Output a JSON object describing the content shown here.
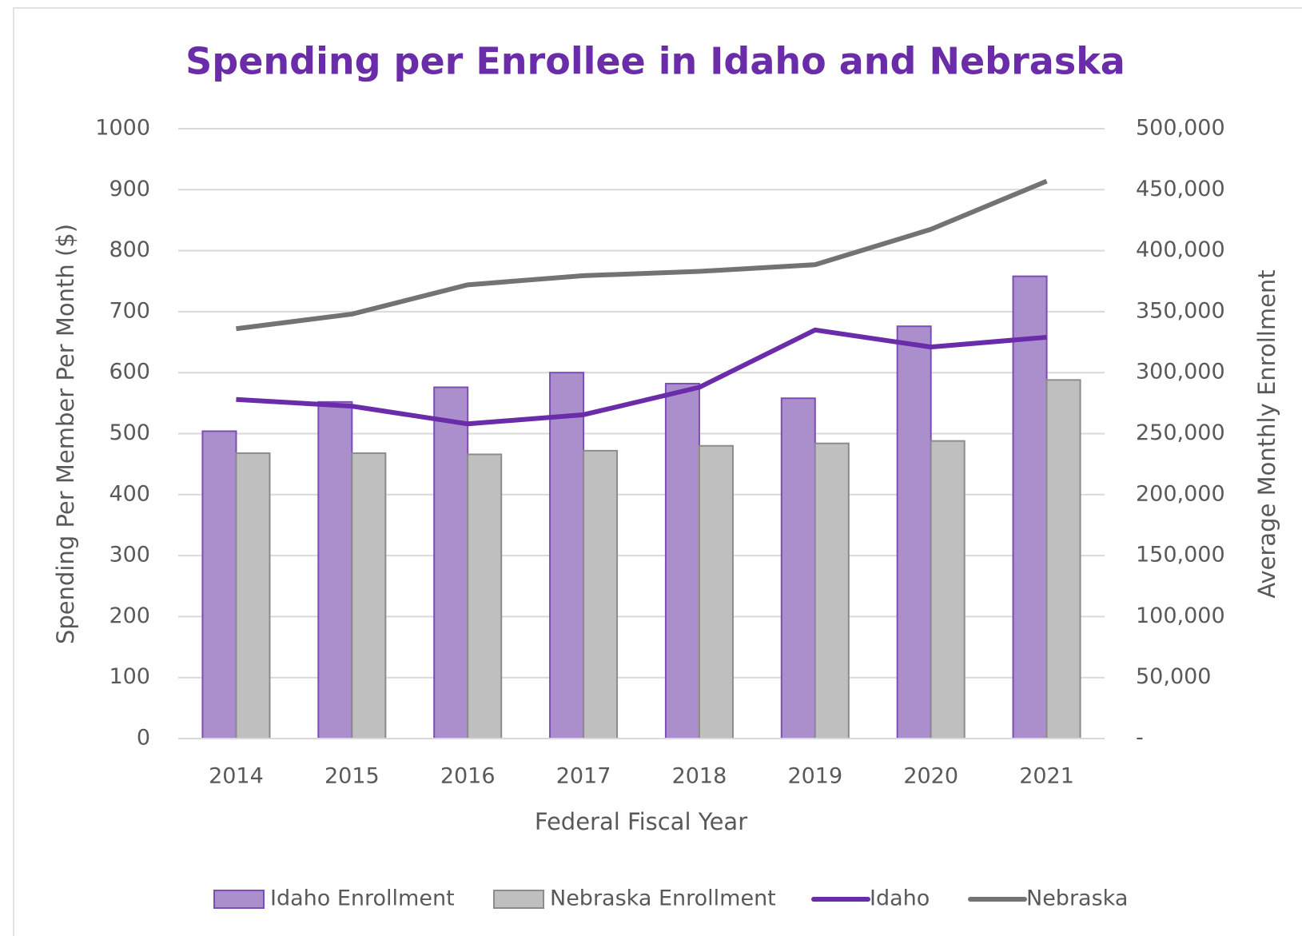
{
  "chart_data": {
    "type": "bar",
    "title": "Spending per Enrollee in Idaho and Nebraska",
    "x_label": "Federal Fiscal Year",
    "y_label": "Spending Per Member Per Month ($)",
    "y2_label": "Average Monthly Enrollment",
    "categories": [
      "2014",
      "2015",
      "2016",
      "2017",
      "2018",
      "2019",
      "2020",
      "2021"
    ],
    "series": [
      {
        "name": "Idaho Enrollment",
        "type": "bar",
        "axis": "y2",
        "color": "#ab8fcd",
        "edge_color": "#7d4db5",
        "values": [
          252000,
          276000,
          288000,
          300000,
          291000,
          279000,
          338000,
          379000
        ]
      },
      {
        "name": "Nebraska Enrollment",
        "type": "bar",
        "axis": "y2",
        "color": "#bfbfbf",
        "edge_color": "#8c8c8c",
        "values": [
          234000,
          234000,
          233000,
          236000,
          240000,
          242000,
          244000,
          294000
        ]
      },
      {
        "name": "Idaho",
        "type": "line",
        "axis": "y",
        "color": "#6a2ca8",
        "values": [
          556,
          545,
          516,
          531,
          576,
          670,
          642,
          658
        ]
      },
      {
        "name": "Nebraska",
        "type": "line",
        "axis": "y",
        "color": "#737373",
        "values": [
          672,
          696,
          744,
          759,
          766,
          777,
          835,
          914
        ]
      }
    ],
    "ylim": [
      0,
      1000
    ],
    "yticks": [
      0,
      100,
      200,
      300,
      400,
      500,
      600,
      700,
      800,
      900,
      1000
    ],
    "y2lim": [
      0,
      500000
    ],
    "y2ticks": [
      {
        "value": 0,
        "label": "-"
      },
      {
        "value": 50000,
        "label": "50,000"
      },
      {
        "value": 100000,
        "label": "100,000"
      },
      {
        "value": 150000,
        "label": "150,000"
      },
      {
        "value": 200000,
        "label": "200,000"
      },
      {
        "value": 250000,
        "label": "250,000"
      },
      {
        "value": 300000,
        "label": "300,000"
      },
      {
        "value": 350000,
        "label": "350,000"
      },
      {
        "value": 400000,
        "label": "400,000"
      },
      {
        "value": 450000,
        "label": "450,000"
      },
      {
        "value": 500000,
        "label": "500,000"
      }
    ],
    "grid": true,
    "legend": "bottom"
  }
}
